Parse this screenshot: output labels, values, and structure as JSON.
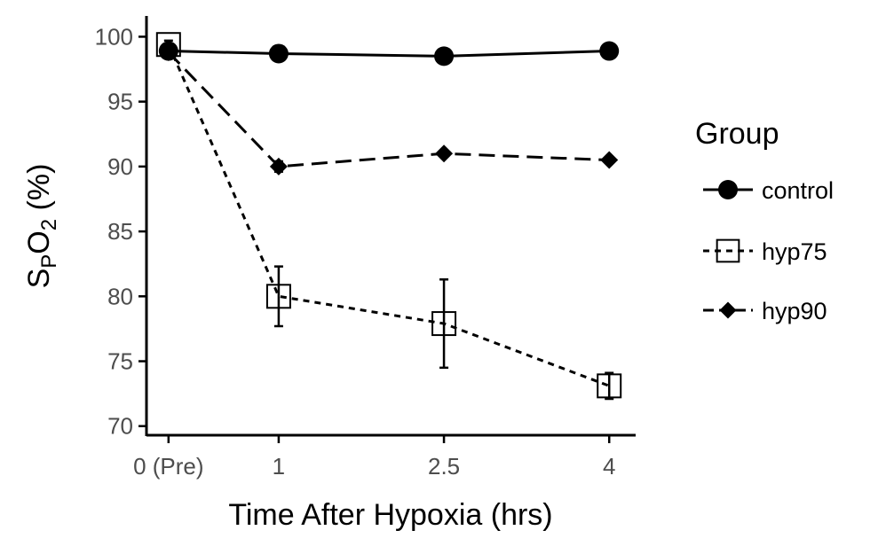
{
  "chart_data": {
    "type": "line",
    "title": "",
    "xlabel": "Time After Hypoxia (hrs)",
    "ylabel_main": "S",
    "ylabel_sub1": "P",
    "ylabel_mid": "O",
    "ylabel_sub2": "2",
    "ylabel_tail": " (%)",
    "x": [
      0,
      1,
      2.5,
      4
    ],
    "x_tick_labels": [
      "0 (Pre)",
      "1",
      "2.5",
      "4"
    ],
    "y_ticks": [
      70,
      75,
      80,
      85,
      90,
      95,
      100
    ],
    "ylim": [
      69.3,
      101.6
    ],
    "xlim": [
      -0.2,
      4.24
    ],
    "legend_title": "Group",
    "legend_position": "right",
    "series": [
      {
        "name": "control",
        "marker": "circle",
        "line": "solid",
        "values": [
          98.9,
          98.7,
          98.5,
          98.9
        ],
        "error": [
          0,
          0,
          0,
          0
        ]
      },
      {
        "name": "hyp75",
        "marker": "open-square",
        "line": "dotted",
        "values": [
          99.4,
          80.0,
          77.9,
          73.1
        ],
        "error": [
          0.3,
          2.3,
          3.4,
          1.0
        ]
      },
      {
        "name": "hyp90",
        "marker": "diamond",
        "line": "dashed",
        "values": [
          98.8,
          90.0,
          91.0,
          90.5
        ],
        "error": [
          0,
          0.4,
          0,
          0
        ]
      }
    ],
    "colors": {
      "ink": "#000000",
      "tick_text": "#4d4d4d"
    }
  }
}
